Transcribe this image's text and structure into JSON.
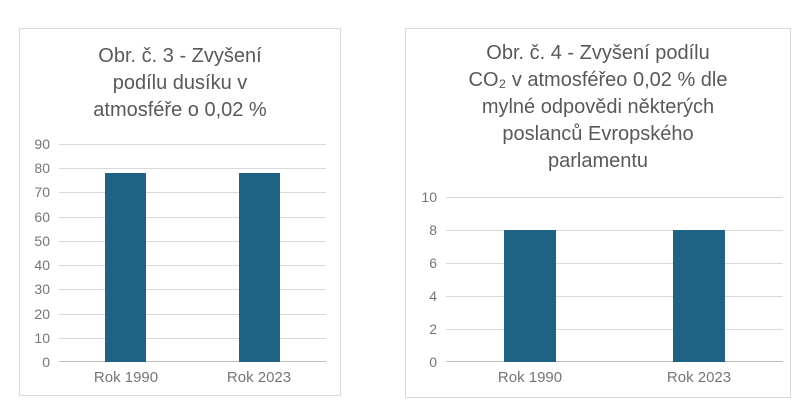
{
  "colors": {
    "bar_fill": "#1f6384",
    "gridline": "#d9d9d9",
    "axis_line": "#bfbfbf",
    "title_text": "#595959",
    "tick_text": "#757575",
    "chart_border": "#d9d9d9",
    "background": "#ffffff"
  },
  "chart_data": [
    {
      "type": "bar",
      "title": "Obr. č. 3 - Zvyšení podílu dusíku v atmosféře o 0,02 %",
      "title_lines": [
        "Obr. č. 3 - Zvyšení",
        "podílu  dusíku  v",
        "atmosféře o 0,02 %"
      ],
      "categories": [
        "Rok 1990",
        "Rok 2023"
      ],
      "values": [
        78,
        78
      ],
      "xlabel": "",
      "ylabel": "",
      "ylim": [
        0,
        90
      ],
      "yticks": [
        0,
        10,
        20,
        30,
        40,
        50,
        60,
        70,
        80,
        90
      ],
      "grid": true,
      "legend": "none"
    },
    {
      "type": "bar",
      "title": "Obr. č. 4 - Zvyšení podílu CO₂ v atmosféřeo 0,02 % dle mylné odpovědi některých poslanců Evropského parlamentu",
      "title_lines": [
        "Obr. č. 4 - Zvyšení  podílu",
        "CO₂ v atmosféřeo 0,02 % dle",
        "mylné  odpovědi  některých",
        "poslanců Evropského",
        "parlamentu"
      ],
      "categories": [
        "Rok 1990",
        "Rok 2023"
      ],
      "values": [
        8,
        8
      ],
      "xlabel": "",
      "ylabel": "",
      "ylim": [
        0,
        10
      ],
      "yticks": [
        0,
        2,
        4,
        6,
        8,
        10
      ],
      "grid": true,
      "legend": "none"
    }
  ]
}
